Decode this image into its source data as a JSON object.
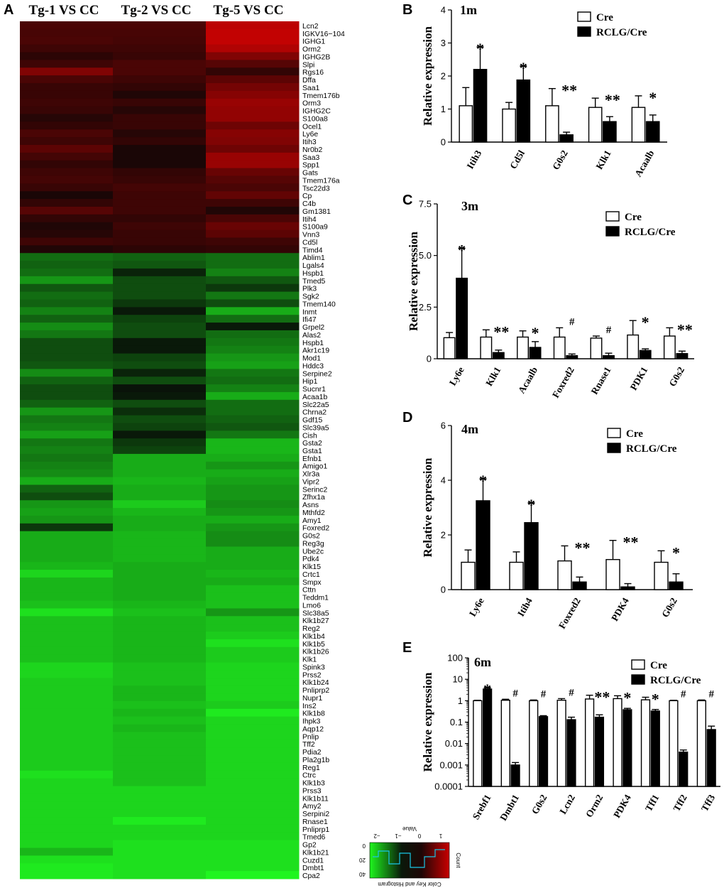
{
  "panels": {
    "A": "A",
    "B": "B",
    "C": "C",
    "D": "D",
    "E": "E"
  },
  "heatmap": {
    "columns": [
      "Tg-1 VS CC",
      "Tg-2 VS CC",
      "Tg-5 VS CC"
    ],
    "genes": [
      "Lcn2",
      "IGKV16−104",
      "IGHG1",
      "Orm2",
      "IGHG2B",
      "Slpi",
      "Rgs16",
      "Dffa",
      "Saa1",
      "Tmem176b",
      "Orm3",
      "IGHG2C",
      "S100a8",
      "Ocel1",
      "Ly6e",
      "Itih3",
      "Nr0b2",
      "Saa3",
      "Spp1",
      "Gats",
      "Tmem176a",
      "Tsc22d3",
      "Cp",
      "C4b",
      "Gm1381",
      "Itih4",
      "S100a9",
      "Vnn3",
      "Cd5l",
      "Timd4",
      "Ablim1",
      "Lgals4",
      "Hspb1",
      "Tmed5",
      "Plk3",
      "Sgk2",
      "Tmem140",
      "Inmt",
      "Ifi47",
      "Grpel2",
      "Alas2",
      "Hspb1",
      "Akr1c19",
      "Mod1",
      "Hddc3",
      "Serpine2",
      "Hip1",
      "Sucnr1",
      "Acaa1b",
      "Slc22a5",
      "Chrna2",
      "Gdf15",
      "Slc39a5",
      "Cish",
      "Gsta2",
      "Gsta1",
      "Efnb1",
      "Amigo1",
      "Xlr3a",
      "Vipr2",
      "Serinc2",
      "Zfhx1a",
      "Asns",
      "Mthfd2",
      "Amy1",
      "Foxred2",
      "G0s2",
      "Reg3g",
      "Ube2c",
      "Pdk4",
      "Klk15",
      "Crtc1",
      "Smpx",
      "Cttn",
      "Teddm1",
      "Lmo6",
      "Slc38a5",
      "Klk1b27",
      "Reg2",
      "Klk1b4",
      "Klk1b5",
      "Klk1b26",
      "Klk1",
      "Spink3",
      "Prss2",
      "Klk1b24",
      "Pnliprp2",
      "Nupr1",
      "Ins2",
      "Klk1b8",
      "Ihpk3",
      "Aqp12",
      "Pnlip",
      "Tff2",
      "Pdia2",
      "Pla2g1b",
      "Reg1",
      "Ctrc",
      "Klk1b3",
      "Prss3",
      "Klk1b11",
      "Amy2",
      "Serpini2",
      "Rnase1",
      "Pnliprp1",
      "Tmed6",
      "Gp2",
      "Klk1b21",
      "Cuzd1",
      "Dmbt1",
      "Cpa2"
    ],
    "values": [
      [
        0.9,
        0.9,
        2.8
      ],
      [
        0.85,
        0.85,
        2.9
      ],
      [
        0.9,
        0.8,
        2.9
      ],
      [
        0.7,
        0.7,
        2.6
      ],
      [
        0.4,
        0.6,
        1.8
      ],
      [
        0.7,
        0.9,
        1.1
      ],
      [
        1.8,
        0.9,
        0.5
      ],
      [
        0.9,
        0.7,
        1.2
      ],
      [
        0.6,
        0.5,
        1.6
      ],
      [
        0.6,
        0.2,
        1.9
      ],
      [
        0.7,
        0.6,
        2.2
      ],
      [
        0.6,
        0.3,
        2.1
      ],
      [
        0.3,
        0.6,
        2.1
      ],
      [
        0.5,
        0.6,
        1.5
      ],
      [
        0.9,
        0.3,
        1.9
      ],
      [
        0.7,
        0.5,
        1.8
      ],
      [
        1.2,
        0.1,
        1.5
      ],
      [
        0.8,
        0.1,
        2.2
      ],
      [
        0.5,
        0.1,
        2.2
      ],
      [
        0.7,
        0.5,
        1.4
      ],
      [
        0.8,
        0.6,
        1.1
      ],
      [
        0.6,
        0.8,
        0.9
      ],
      [
        0.1,
        0.7,
        1.3
      ],
      [
        0.5,
        0.7,
        0.7
      ],
      [
        1.1,
        0.7,
        0.2
      ],
      [
        0.5,
        0.5,
        0.9
      ],
      [
        0.2,
        0.7,
        1.4
      ],
      [
        0.3,
        0.6,
        1.2
      ],
      [
        0.7,
        0.6,
        0.7
      ],
      [
        0.2,
        0.4,
        0.5
      ],
      [
        -0.9,
        -0.8,
        -0.9
      ],
      [
        -0.8,
        -0.7,
        -0.9
      ],
      [
        -0.9,
        -0.2,
        -1.1
      ],
      [
        -1.3,
        -0.6,
        -0.7
      ],
      [
        -0.7,
        -0.6,
        -0.4
      ],
      [
        -0.9,
        -0.6,
        -1.0
      ],
      [
        -0.8,
        -0.4,
        -0.6
      ],
      [
        -1.1,
        -0.1,
        -1.5
      ],
      [
        -0.8,
        -0.5,
        -0.9
      ],
      [
        -1.2,
        -0.6,
        -0.1
      ],
      [
        -1.0,
        -0.6,
        -0.9
      ],
      [
        -0.6,
        -0.1,
        -1.0
      ],
      [
        -0.6,
        -0.1,
        -1.1
      ],
      [
        -0.6,
        -0.5,
        -1.3
      ],
      [
        -0.7,
        -0.6,
        -1.4
      ],
      [
        -1.2,
        -0.2,
        -1.0
      ],
      [
        -0.8,
        -0.6,
        -0.9
      ],
      [
        -0.6,
        -0.05,
        -1.1
      ],
      [
        -0.6,
        -0.1,
        -1.5
      ],
      [
        -0.8,
        -0.6,
        -0.9
      ],
      [
        -1.3,
        -0.3,
        -0.9
      ],
      [
        -1.0,
        -0.6,
        -0.8
      ],
      [
        -1.1,
        -0.5,
        -0.7
      ],
      [
        -1.4,
        -0.1,
        -1.0
      ],
      [
        -1.0,
        -0.4,
        -1.6
      ],
      [
        -1.1,
        -0.5,
        -1.6
      ],
      [
        -1.0,
        -1.5,
        -1.5
      ],
      [
        -1.1,
        -1.5,
        -1.3
      ],
      [
        -1.2,
        -1.5,
        -1.5
      ],
      [
        -1.5,
        -1.6,
        -1.4
      ],
      [
        -0.8,
        -1.5,
        -1.3
      ],
      [
        -0.6,
        -1.5,
        -1.3
      ],
      [
        -1.3,
        -1.8,
        -1.2
      ],
      [
        -1.4,
        -1.6,
        -1.3
      ],
      [
        -1.3,
        -1.5,
        -1.5
      ],
      [
        -0.4,
        -1.5,
        -1.3
      ],
      [
        -1.5,
        -1.6,
        -1.2
      ],
      [
        -1.5,
        -1.6,
        -1.2
      ],
      [
        -1.5,
        -1.6,
        -1.5
      ],
      [
        -1.5,
        -1.6,
        -1.5
      ],
      [
        -1.6,
        -1.5,
        -1.5
      ],
      [
        -1.9,
        -1.5,
        -1.6
      ],
      [
        -1.6,
        -1.5,
        -1.5
      ],
      [
        -1.6,
        -1.5,
        -1.7
      ],
      [
        -1.6,
        -1.5,
        -1.7
      ],
      [
        -1.7,
        -1.6,
        -1.7
      ],
      [
        -2.0,
        -1.7,
        -1.3
      ],
      [
        -1.7,
        -1.6,
        -1.7
      ],
      [
        -1.7,
        -1.6,
        -1.7
      ],
      [
        -1.7,
        -1.6,
        -1.8
      ],
      [
        -1.7,
        -1.6,
        -2.0
      ],
      [
        -1.7,
        -1.6,
        -1.8
      ],
      [
        -1.7,
        -1.6,
        -1.8
      ],
      [
        -1.9,
        -1.7,
        -1.9
      ],
      [
        -1.9,
        -1.7,
        -1.9
      ],
      [
        -1.8,
        -1.7,
        -1.9
      ],
      [
        -1.8,
        -1.6,
        -1.9
      ],
      [
        -1.8,
        -1.6,
        -1.9
      ],
      [
        -1.8,
        -1.7,
        -1.8
      ],
      [
        -1.8,
        -1.6,
        -2.1
      ],
      [
        -1.8,
        -1.7,
        -1.9
      ],
      [
        -1.8,
        -1.6,
        -1.9
      ],
      [
        -1.8,
        -1.7,
        -1.9
      ],
      [
        -1.8,
        -1.7,
        -1.9
      ],
      [
        -1.8,
        -1.7,
        -1.9
      ],
      [
        -1.8,
        -1.7,
        -1.9
      ],
      [
        -1.8,
        -1.7,
        -1.9
      ],
      [
        -2.0,
        -1.7,
        -1.9
      ],
      [
        -1.9,
        -1.7,
        -1.9
      ],
      [
        -1.9,
        -1.9,
        -1.9
      ],
      [
        -1.9,
        -1.9,
        -1.9
      ],
      [
        -1.9,
        -1.9,
        -1.9
      ],
      [
        -1.9,
        -1.9,
        -1.9
      ],
      [
        -1.9,
        -2.1,
        -1.9
      ],
      [
        -1.9,
        -1.9,
        -1.9
      ],
      [
        -1.9,
        -1.9,
        -1.9
      ],
      [
        -1.9,
        -2.0,
        -2.0
      ],
      [
        -1.6,
        -2.0,
        -2.0
      ],
      [
        -2.0,
        -2.0,
        -2.0
      ],
      [
        -2.1,
        -2.0,
        -2.0
      ],
      [
        -2.1,
        -2.0,
        -2.2
      ]
    ],
    "color_key": {
      "title": "Color Key and Histogram",
      "value_label": "Value",
      "count_label": "Count",
      "ticks": [
        "1",
        "0",
        "−1",
        "−2"
      ],
      "count_ticks": [
        "0",
        "20",
        "40"
      ]
    }
  },
  "chart_data": [
    {
      "panel": "B",
      "title": "1m",
      "type": "bar",
      "ylabel": "Relative expression",
      "ylim": [
        0,
        4
      ],
      "yticks": [
        0,
        1,
        2,
        3,
        4
      ],
      "ytick_labels": [
        "0",
        "1",
        "2",
        "3",
        "4"
      ],
      "categories": [
        "Itih3",
        "Cd5l",
        "G0s2",
        "Klk1",
        "Acaalb"
      ],
      "series": [
        {
          "name": "Cre",
          "values": [
            1.1,
            1.0,
            1.1,
            1.05,
            1.05
          ],
          "err": [
            0.55,
            0.2,
            0.52,
            0.28,
            0.35
          ]
        },
        {
          "name": "RCLG/Cre",
          "values": [
            2.2,
            1.88,
            0.22,
            0.62,
            0.62
          ],
          "err": [
            0.68,
            0.42,
            0.08,
            0.15,
            0.2
          ]
        }
      ],
      "sig": [
        "*",
        "*",
        "**",
        "**",
        "*"
      ]
    },
    {
      "panel": "C",
      "title": "3m",
      "type": "bar",
      "ylabel": "Relative expression",
      "ylim": [
        0,
        7.5
      ],
      "yticks": [
        0,
        2.5,
        5,
        7.5
      ],
      "ytick_labels": [
        "0",
        "2.5",
        "5.0",
        "7.5"
      ],
      "categories": [
        "Ly6e",
        "Klk1",
        "Acaalb",
        "Foxred2",
        "Rnase1",
        "PDK1",
        "G0s2"
      ],
      "series": [
        {
          "name": "Cre",
          "values": [
            1.02,
            1.05,
            1.05,
            1.05,
            1.0,
            1.15,
            1.1
          ],
          "err": [
            0.25,
            0.35,
            0.3,
            0.45,
            0.1,
            0.7,
            0.4
          ]
        },
        {
          "name": "RCLG/Cre",
          "values": [
            3.9,
            0.3,
            0.55,
            0.15,
            0.15,
            0.4,
            0.25
          ],
          "err": [
            1.45,
            0.12,
            0.28,
            0.08,
            0.12,
            0.08,
            0.12
          ]
        }
      ],
      "sig": [
        "*",
        "**",
        "*",
        "#",
        "#",
        "*",
        "**"
      ]
    },
    {
      "panel": "D",
      "title": "4m",
      "type": "bar",
      "ylabel": "Relative expression",
      "ylim": [
        0,
        6
      ],
      "yticks": [
        0,
        2,
        4,
        6
      ],
      "ytick_labels": [
        "0",
        "2",
        "4",
        "6"
      ],
      "categories": [
        "Ly6e",
        "Itih4",
        "Foxred2",
        "PDK4",
        "G0s2"
      ],
      "series": [
        {
          "name": "Cre",
          "values": [
            1.0,
            1.0,
            1.05,
            1.1,
            1.0
          ],
          "err": [
            0.45,
            0.38,
            0.55,
            0.7,
            0.42
          ]
        },
        {
          "name": "RCLG/Cre",
          "values": [
            3.25,
            2.45,
            0.28,
            0.1,
            0.28
          ],
          "err": [
            0.8,
            0.72,
            0.18,
            0.12,
            0.3
          ]
        }
      ],
      "sig": [
        "*",
        "*",
        "**",
        "**",
        "*"
      ]
    },
    {
      "panel": "E",
      "title": "6m",
      "type": "bar",
      "yscale": "log",
      "ylabel": "Relative expression",
      "ylim": [
        0.0001,
        100
      ],
      "yticks": [
        0.0001,
        0.001,
        0.01,
        0.1,
        1,
        10,
        100
      ],
      "ytick_labels": [
        "0.0001",
        "0.001",
        "0.01",
        "0.1",
        "1",
        "10",
        "100"
      ],
      "categories": [
        "Srebf1",
        "Dmbt1",
        "G0s2",
        "Lcn2",
        "Orm2",
        "PDK4",
        "Tff1",
        "Tff2",
        "Tff3"
      ],
      "series": [
        {
          "name": "Cre",
          "values": [
            1.0,
            1.05,
            1.0,
            1.05,
            1.2,
            1.25,
            1.1,
            1.0,
            1.0
          ],
          "err": [
            0.05,
            0.12,
            0.08,
            0.2,
            0.6,
            0.45,
            0.35,
            0.05,
            0.08
          ]
        },
        {
          "name": "RCLG/Cre",
          "values": [
            3.5,
            0.001,
            0.18,
            0.13,
            0.17,
            0.38,
            0.33,
            0.004,
            0.045
          ],
          "err": [
            0.6,
            0.0003,
            0.02,
            0.04,
            0.05,
            0.06,
            0.06,
            0.001,
            0.02
          ]
        }
      ],
      "sig": [
        "*",
        "#",
        "#",
        "#",
        "**",
        "*",
        "*",
        "#",
        "#"
      ]
    }
  ]
}
